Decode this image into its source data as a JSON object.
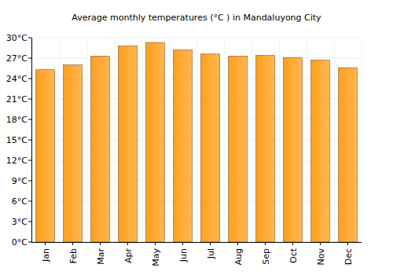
{
  "chart_data": {
    "type": "bar",
    "title": "Average monthly temperatures (°C ) in Mandaluyong City",
    "categories": [
      "Jan",
      "Feb",
      "Mar",
      "Apr",
      "May",
      "Jun",
      "Jul",
      "Aug",
      "Sep",
      "Oct",
      "Nov",
      "Dec"
    ],
    "values": [
      25.3,
      26.0,
      27.3,
      28.8,
      29.3,
      28.2,
      27.6,
      27.3,
      27.4,
      27.1,
      26.7,
      25.6
    ],
    "color": "#ff9f1a",
    "ylim": [
      0,
      30
    ],
    "yticks": [
      {
        "value": 0,
        "label": "0°C"
      },
      {
        "value": 3,
        "label": "3°C"
      },
      {
        "value": 6,
        "label": "6°C"
      },
      {
        "value": 9,
        "label": "9°C"
      },
      {
        "value": 12,
        "label": "12°C"
      },
      {
        "value": 15,
        "label": "15°C"
      },
      {
        "value": 18,
        "label": "18°C"
      },
      {
        "value": 21,
        "label": "21°C"
      },
      {
        "value": 24,
        "label": "24°C"
      },
      {
        "value": 27,
        "label": "27°C"
      },
      {
        "value": 30,
        "label": "30°C"
      }
    ],
    "grid": true
  }
}
